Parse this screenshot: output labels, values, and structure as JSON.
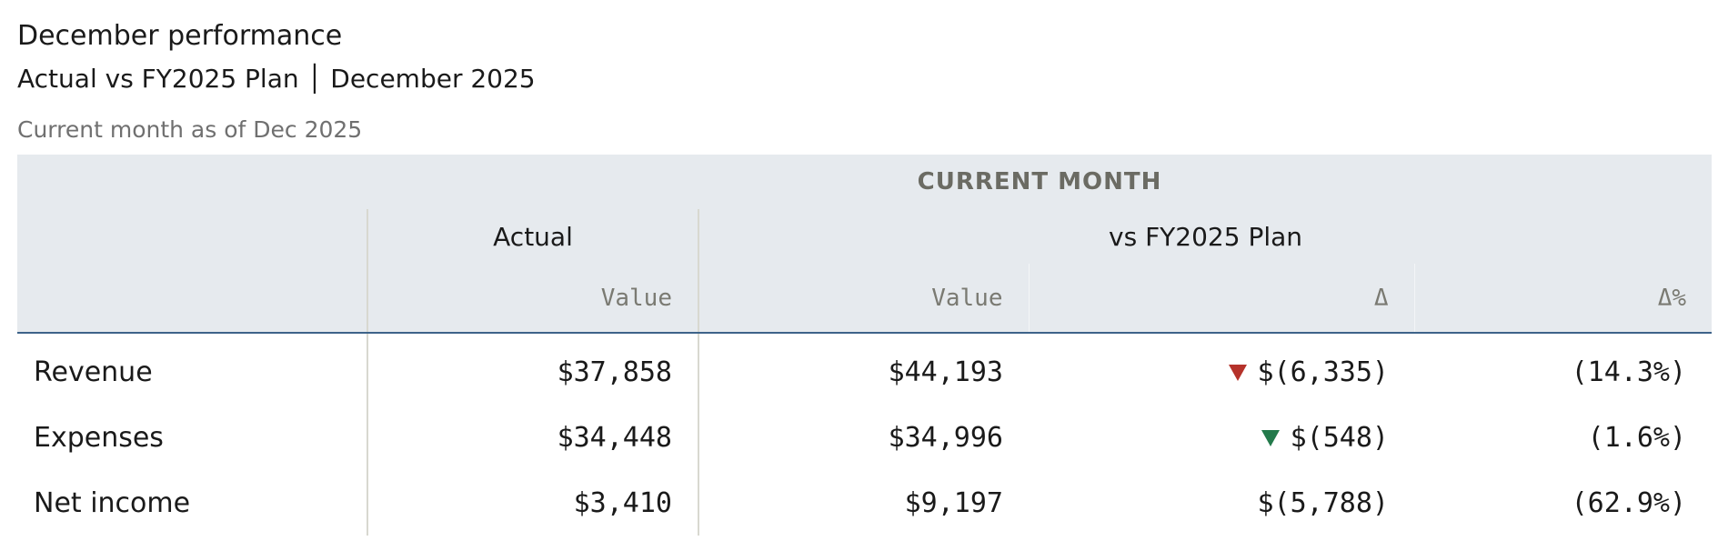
{
  "header": {
    "title": "December performance",
    "subtitle": "Actual vs FY2025 Plan │ December 2025",
    "note": "Current month as of Dec 2025"
  },
  "table": {
    "group": "CURRENT MONTH",
    "subgroups": [
      "Actual",
      "vs FY2025 Plan"
    ],
    "columns": [
      "Value",
      "Value",
      "Δ",
      "Δ%"
    ],
    "rows": [
      [
        "Revenue",
        "$37,858",
        "$44,193",
        "$(6,335)",
        "(14.3%)"
      ],
      [
        "Expenses",
        "$34,448",
        "$34,996",
        "$(548)",
        "(1.6%)"
      ],
      [
        "Net income",
        "$3,410",
        "$9,197",
        "$(5,788)",
        "(62.9%)"
      ]
    ]
  }
}
